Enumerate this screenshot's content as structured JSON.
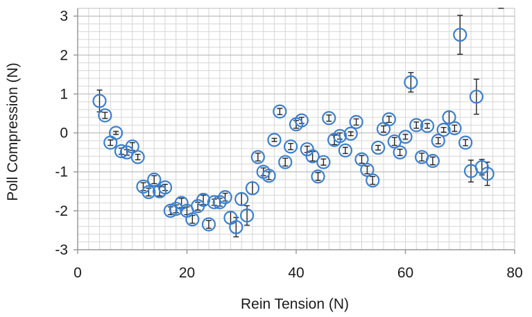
{
  "chart_data": {
    "type": "scatter",
    "title": "",
    "xlabel": "Rein Tension (N)",
    "ylabel": "Poll Compression (N)",
    "xlim": [
      0,
      80
    ],
    "ylim": [
      -3,
      3.2
    ],
    "xticks": [
      0,
      20,
      40,
      60,
      80
    ],
    "yticks": [
      -3,
      -2,
      -1,
      0,
      1,
      2,
      3
    ],
    "grid": true,
    "legend": "none",
    "marker": "open-circle",
    "colors": {
      "marker": "#3a7fcf",
      "error_bar": "#222222",
      "grid": "#d6d6d6",
      "axis": "#9a9a9a"
    },
    "points": [
      {
        "x": 4,
        "y": 0.82,
        "err": 0.28
      },
      {
        "x": 5,
        "y": 0.45,
        "err": 0.08
      },
      {
        "x": 6,
        "y": -0.25,
        "err": 0.07
      },
      {
        "x": 7,
        "y": 0.0,
        "err": 0.04
      },
      {
        "x": 8,
        "y": -0.47,
        "err": 0.08
      },
      {
        "x": 9,
        "y": -0.5,
        "err": 0.07
      },
      {
        "x": 10,
        "y": -0.35,
        "err": 0.1
      },
      {
        "x": 11,
        "y": -0.62,
        "err": 0.07
      },
      {
        "x": 12,
        "y": -1.38,
        "err": 0.1
      },
      {
        "x": 13,
        "y": -1.52,
        "err": 0.1
      },
      {
        "x": 14,
        "y": -1.2,
        "err": 0.1
      },
      {
        "x": 15,
        "y": -1.5,
        "err": 0.12
      },
      {
        "x": 16,
        "y": -1.4,
        "err": 0.08
      },
      {
        "x": 17,
        "y": -2.0,
        "err": 0.1
      },
      {
        "x": 18,
        "y": -1.95,
        "err": 0.1
      },
      {
        "x": 19,
        "y": -1.8,
        "err": 0.12
      },
      {
        "x": 20,
        "y": -2.0,
        "err": 0.1
      },
      {
        "x": 21,
        "y": -2.22,
        "err": 0.1
      },
      {
        "x": 22,
        "y": -1.88,
        "err": 0.1
      },
      {
        "x": 23,
        "y": -1.72,
        "err": 0.12
      },
      {
        "x": 24,
        "y": -2.35,
        "err": 0.1
      },
      {
        "x": 25,
        "y": -1.78,
        "err": 0.08
      },
      {
        "x": 26,
        "y": -1.78,
        "err": 0.1
      },
      {
        "x": 27,
        "y": -1.65,
        "err": 0.1
      },
      {
        "x": 28,
        "y": -2.18,
        "err": 0.15
      },
      {
        "x": 29,
        "y": -2.42,
        "err": 0.25
      },
      {
        "x": 30,
        "y": -1.7,
        "err": 0.15
      },
      {
        "x": 31,
        "y": -2.12,
        "err": 0.25
      },
      {
        "x": 32,
        "y": -1.42,
        "err": 0.15
      },
      {
        "x": 33,
        "y": -0.62,
        "err": 0.1
      },
      {
        "x": 34,
        "y": -1.0,
        "err": 0.1
      },
      {
        "x": 35,
        "y": -1.1,
        "err": 0.1
      },
      {
        "x": 36,
        "y": -0.18,
        "err": 0.04
      },
      {
        "x": 37,
        "y": 0.55,
        "err": 0.08
      },
      {
        "x": 38,
        "y": -0.75,
        "err": 0.1
      },
      {
        "x": 39,
        "y": -0.35,
        "err": 0.08
      },
      {
        "x": 40,
        "y": 0.22,
        "err": 0.1
      },
      {
        "x": 41,
        "y": 0.32,
        "err": 0.08
      },
      {
        "x": 42,
        "y": -0.42,
        "err": 0.08
      },
      {
        "x": 43,
        "y": -0.6,
        "err": 0.12
      },
      {
        "x": 44,
        "y": -1.12,
        "err": 0.1
      },
      {
        "x": 45,
        "y": -0.75,
        "err": 0.08
      },
      {
        "x": 46,
        "y": 0.38,
        "err": 0.08
      },
      {
        "x": 47,
        "y": -0.18,
        "err": 0.12
      },
      {
        "x": 48,
        "y": -0.08,
        "err": 0.08
      },
      {
        "x": 49,
        "y": -0.45,
        "err": 0.08
      },
      {
        "x": 50,
        "y": -0.02,
        "err": 0.05
      },
      {
        "x": 51,
        "y": 0.28,
        "err": 0.08
      },
      {
        "x": 52,
        "y": -0.68,
        "err": 0.1
      },
      {
        "x": 53,
        "y": -0.95,
        "err": 0.1
      },
      {
        "x": 54,
        "y": -1.22,
        "err": 0.1
      },
      {
        "x": 55,
        "y": -0.38,
        "err": 0.06
      },
      {
        "x": 56,
        "y": 0.1,
        "err": 0.08
      },
      {
        "x": 57,
        "y": 0.35,
        "err": 0.08
      },
      {
        "x": 58,
        "y": -0.22,
        "err": 0.1
      },
      {
        "x": 59,
        "y": -0.5,
        "err": 0.08
      },
      {
        "x": 60,
        "y": -0.1,
        "err": 0.06
      },
      {
        "x": 61,
        "y": 1.3,
        "err": 0.25
      },
      {
        "x": 62,
        "y": 0.2,
        "err": 0.08
      },
      {
        "x": 63,
        "y": -0.62,
        "err": 0.1
      },
      {
        "x": 64,
        "y": 0.18,
        "err": 0.06
      },
      {
        "x": 65,
        "y": -0.72,
        "err": 0.1
      },
      {
        "x": 66,
        "y": -0.2,
        "err": 0.08
      },
      {
        "x": 67,
        "y": 0.08,
        "err": 0.06
      },
      {
        "x": 68,
        "y": 0.4,
        "err": 0.15
      },
      {
        "x": 69,
        "y": 0.12,
        "err": 0.08
      },
      {
        "x": 70,
        "y": 2.52,
        "err": 0.5
      },
      {
        "x": 71,
        "y": -0.25,
        "err": 0.08
      },
      {
        "x": 72,
        "y": -0.98,
        "err": 0.28
      },
      {
        "x": 73,
        "y": 0.93,
        "err": 0.45
      },
      {
        "x": 74,
        "y": -0.88,
        "err": 0.2
      },
      {
        "x": 75,
        "y": -1.05,
        "err": 0.3
      },
      {
        "x": 77.5,
        "y": 3.2,
        "err": 0.0
      }
    ]
  }
}
